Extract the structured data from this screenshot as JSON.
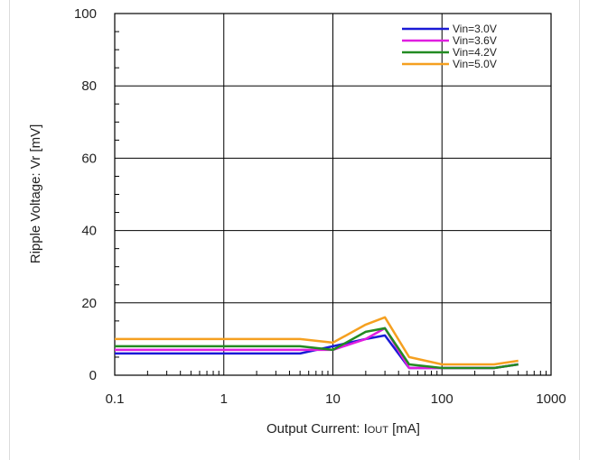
{
  "chart_data": {
    "type": "line",
    "xlabel": "Output  Current:  I",
    "xlabel_sub": "OUT",
    "xlabel_unit": " [mA]",
    "ylabel": "Ripple  Voltage:  Vr [mV]",
    "x_scale": "log",
    "xlim": [
      0.1,
      1000
    ],
    "ylim": [
      0,
      100
    ],
    "x_ticks": [
      0.1,
      1,
      10,
      100,
      1000
    ],
    "x_tick_labels": [
      "0.1",
      "1",
      "10",
      "100",
      "1000"
    ],
    "y_ticks": [
      0,
      20,
      40,
      60,
      80,
      100
    ],
    "y_tick_labels": [
      "0",
      "20",
      "40",
      "60",
      "80",
      "100"
    ],
    "grid": true,
    "legend_position": "top-right",
    "series": [
      {
        "name": "Vin=3.0V",
        "color": "#1a1ad6",
        "x": [
          0.1,
          5,
          10,
          20,
          30,
          50,
          100,
          300,
          500
        ],
        "y": [
          6,
          6,
          8,
          10,
          11,
          2,
          2,
          2,
          3
        ]
      },
      {
        "name": "Vin=3.6V",
        "color": "#e01ee0",
        "x": [
          0.1,
          5,
          10,
          20,
          30,
          50,
          100,
          300,
          500
        ],
        "y": [
          7,
          7,
          7,
          10,
          13,
          2,
          2,
          2,
          3
        ]
      },
      {
        "name": "Vin=4.2V",
        "color": "#228b22",
        "x": [
          0.1,
          5,
          10,
          20,
          30,
          50,
          100,
          300,
          500
        ],
        "y": [
          8,
          8,
          7,
          12,
          13,
          3,
          2,
          2,
          3
        ]
      },
      {
        "name": "Vin=5.0V",
        "color": "#f5a020",
        "x": [
          0.1,
          5,
          10,
          20,
          30,
          50,
          100,
          300,
          500
        ],
        "y": [
          10,
          10,
          9,
          14,
          16,
          5,
          3,
          3,
          4
        ]
      }
    ]
  }
}
